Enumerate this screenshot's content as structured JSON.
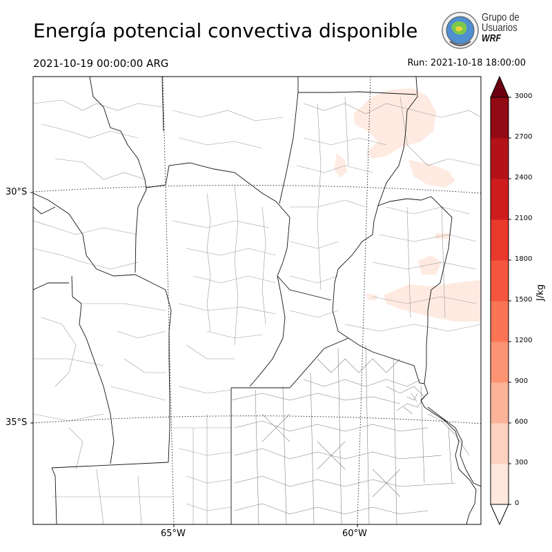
{
  "header": {
    "title": "Energía potencial convectiva disponible",
    "valid_time": "2021-10-19 00:00:00 ARG",
    "run_time": "Run: 2021-10-18 18:00:00"
  },
  "logo": {
    "line1": "Grupo de",
    "line2": "Usuarios",
    "line3": "WRF"
  },
  "map": {
    "lat_labels": [
      "30°S",
      "35°S"
    ],
    "lon_labels": [
      "65°W",
      "60°W"
    ]
  },
  "colorbar": {
    "unit": "J/kg",
    "ticks": [
      "0",
      "300",
      "600",
      "900",
      "1200",
      "1500",
      "1800",
      "2100",
      "2400",
      "2700",
      "3000"
    ],
    "colors": [
      "#fee7dc",
      "#fdd1c0",
      "#fcb499",
      "#fc9474",
      "#fb7555",
      "#f5553c",
      "#e8392c",
      "#ce1c1e",
      "#b31318",
      "#920a13",
      "#6c0010"
    ],
    "extend_low_color": "#ffffff",
    "extend_high_color": "#6c0010"
  }
}
